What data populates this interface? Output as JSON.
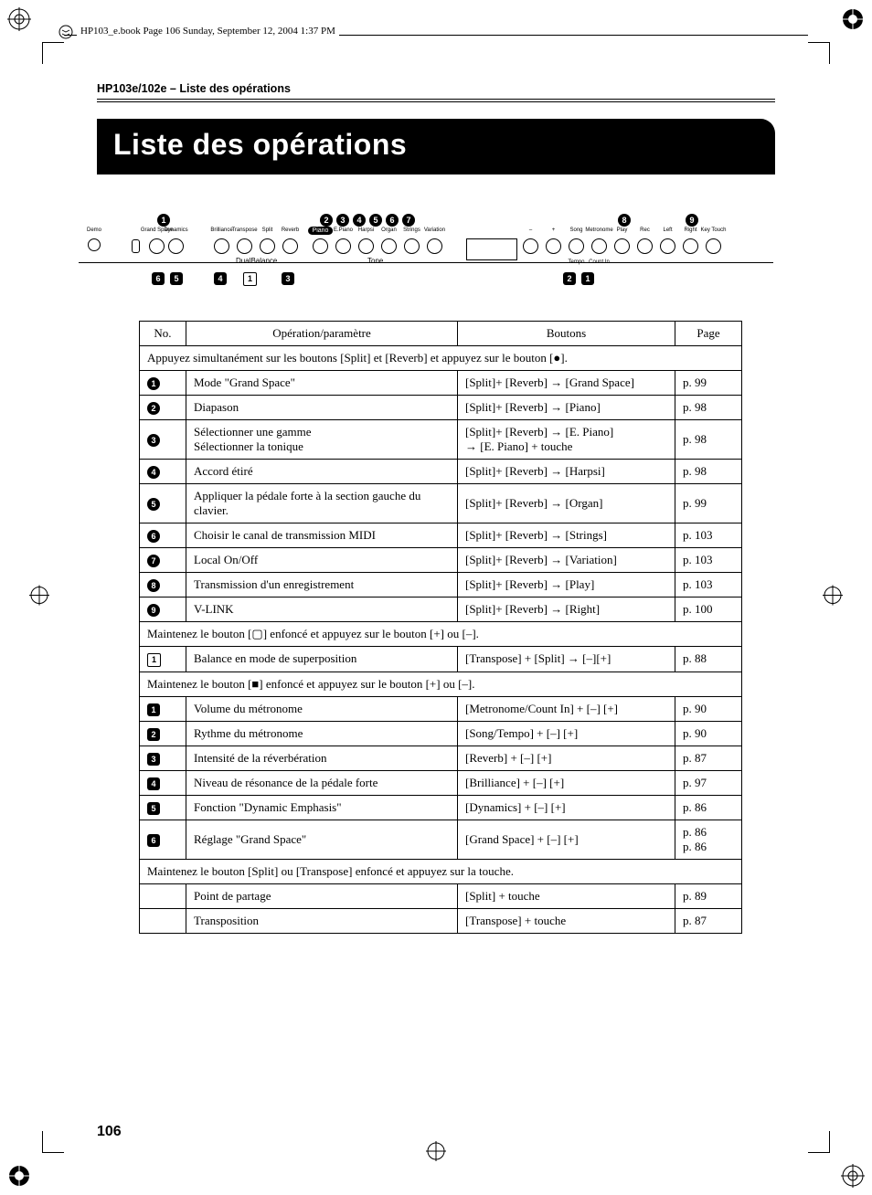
{
  "meta": {
    "bookline": "HP103_e.book  Page 106  Sunday, September 12, 2004  1:37 PM"
  },
  "header": "HP103e/102e – Liste des opérations",
  "title": "Liste des opérations",
  "page_number": "106",
  "figure": {
    "top_circles": [
      "1",
      "2",
      "3",
      "4",
      "5",
      "6",
      "7",
      "8",
      "9"
    ],
    "bottom_left_rsq": [
      "6",
      "5",
      "4"
    ],
    "bottom_left_osq": "1",
    "bottom_left_rsq2": "3",
    "bottom_right_rsq": [
      "2",
      "1"
    ],
    "group1_labels": [
      "Demo"
    ],
    "group2_labels": [
      "Grand Space",
      "Dynamics"
    ],
    "group3_labels": [
      "Brilliance",
      "Transpose",
      "Split",
      "Reverb"
    ],
    "group3_sub": "DualBalance",
    "group4_pill": "Piano",
    "group4_labels": [
      "E.Piano",
      "Harpsi",
      "Organ",
      "Strings",
      "Variation"
    ],
    "group4_sub": "Tone",
    "group5_labels": [
      "–",
      "+",
      "Song",
      "Metronome"
    ],
    "group5_sub": [
      "Tempo",
      "Count In"
    ],
    "group6_labels": [
      "Play",
      "Rec",
      "Left",
      "Right",
      "Key Touch"
    ]
  },
  "table": {
    "headers": {
      "no": "No.",
      "op": "Opération/paramètre",
      "btn": "Boutons",
      "pg": "Page"
    },
    "section1": "Appuyez simultanément sur les boutons [Split] et [Reverb] et appuyez sur le bouton [●].",
    "rows1": [
      {
        "n": "1",
        "t": "circle",
        "op": "Mode \"Grand Space\"",
        "btn": "[Split]+ [Reverb] → [Grand Space]",
        "pg": "p. 99"
      },
      {
        "n": "2",
        "t": "circle",
        "op": "Diapason",
        "btn": "[Split]+ [Reverb] → [Piano]",
        "pg": "p. 98"
      },
      {
        "n": "3",
        "t": "circle",
        "op": "Sélectionner une gamme\nSélectionner la tonique",
        "btn": "[Split]+ [Reverb] → [E. Piano]\n→ [E. Piano] + touche",
        "pg": "p. 98"
      },
      {
        "n": "4",
        "t": "circle",
        "op": "Accord étiré",
        "btn": "[Split]+ [Reverb] → [Harpsi]",
        "pg": "p. 98"
      },
      {
        "n": "5",
        "t": "circle",
        "op": "Appliquer la pédale forte à la section gauche du clavier.",
        "btn": "[Split]+ [Reverb] → [Organ]",
        "pg": "p. 99"
      },
      {
        "n": "6",
        "t": "circle",
        "op": "Choisir le canal de transmission MIDI",
        "btn": "[Split]+ [Reverb] → [Strings]",
        "pg": "p. 103"
      },
      {
        "n": "7",
        "t": "circle",
        "op": "Local On/Off",
        "btn": "[Split]+ [Reverb] → [Variation]",
        "pg": "p. 103"
      },
      {
        "n": "8",
        "t": "circle",
        "op": "Transmission d'un enregistrement",
        "btn": "[Split]+ [Reverb] → [Play]",
        "pg": "p. 103"
      },
      {
        "n": "9",
        "t": "circle",
        "op": "V-LINK",
        "btn": "[Split]+ [Reverb] → [Right]",
        "pg": "p. 100"
      }
    ],
    "section2": "Maintenez le bouton [▢] enfoncé et appuyez sur le bouton [+] ou [–].",
    "rows2": [
      {
        "n": "1",
        "t": "osq",
        "op": "Balance en mode de superposition",
        "btn": "[Transpose] + [Split] → [–][+]",
        "pg": "p. 88"
      }
    ],
    "section3": "Maintenez le bouton [■] enfoncé et appuyez sur le bouton [+] ou [–].",
    "rows3": [
      {
        "n": "1",
        "t": "rsq",
        "op": "Volume du métronome",
        "btn": "[Metronome/Count In] + [–] [+]",
        "pg": "p. 90"
      },
      {
        "n": "2",
        "t": "rsq",
        "op": "Rythme du métronome",
        "btn": "[Song/Tempo] + [–] [+]",
        "pg": "p. 90"
      },
      {
        "n": "3",
        "t": "rsq",
        "op": "Intensité de la réverbération",
        "btn": "[Reverb] + [–] [+]",
        "pg": "p. 87"
      },
      {
        "n": "4",
        "t": "rsq",
        "op": "Niveau de résonance de la pédale forte",
        "btn": "[Brilliance] + [–] [+]",
        "pg": "p. 97"
      },
      {
        "n": "5",
        "t": "rsq",
        "op": "Fonction \"Dynamic Emphasis\"",
        "btn": "[Dynamics] + [–] [+]",
        "pg": "p. 86"
      },
      {
        "n": "6",
        "t": "rsq",
        "op": "Réglage \"Grand Space\"",
        "btn": "[Grand Space] + [–] [+]",
        "pg": "p. 86\np. 86"
      }
    ],
    "section4": "Maintenez le bouton [Split] ou [Transpose] enfoncé et appuyez sur la touche.",
    "rows4": [
      {
        "n": "",
        "t": "",
        "op": "Point de partage",
        "btn": "[Split] + touche",
        "pg": "p. 89"
      },
      {
        "n": "",
        "t": "",
        "op": "Transposition",
        "btn": "[Transpose] + touche",
        "pg": "p. 87"
      }
    ]
  }
}
